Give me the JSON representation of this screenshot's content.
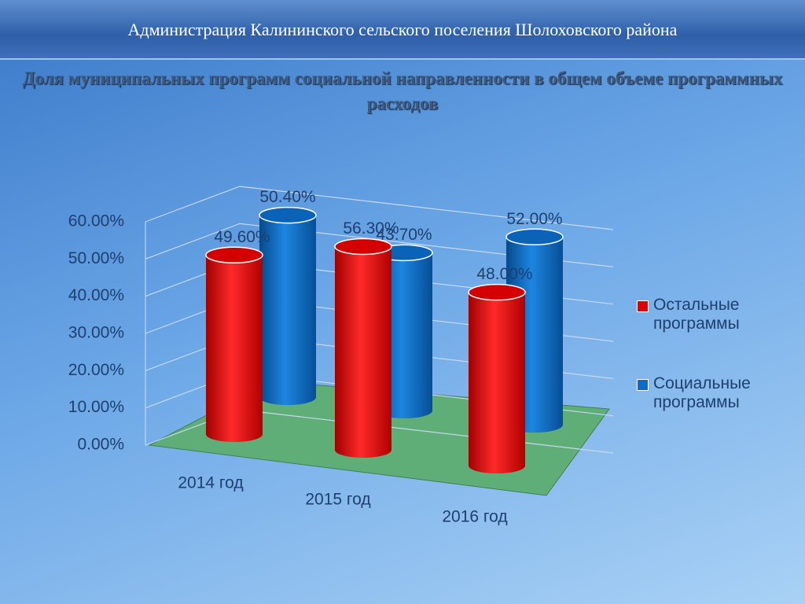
{
  "header": {
    "title": "Администрация Калининского сельского поселения Шолоховского района"
  },
  "chart_data": {
    "type": "bar3d",
    "title": "Доля муниципальных программ социальной направленности в общем объеме программных расходов",
    "categories": [
      "2014 год",
      "2015 год",
      "2016 год"
    ],
    "series": [
      {
        "name": "Остальные программы",
        "color": "#e00000",
        "values": [
          49.6,
          56.3,
          48.0
        ],
        "value_labels": [
          "49.60%",
          "56.30%",
          "48.00%"
        ]
      },
      {
        "name": "Социальные программы",
        "color": "#0a6cc4",
        "values": [
          50.4,
          43.7,
          52.0
        ],
        "value_labels": [
          "50.40%",
          "43.70%",
          "52.00%"
        ]
      }
    ],
    "ylim": [
      0,
      60
    ],
    "yticks": [
      {
        "value": 0,
        "label": "0.00%"
      },
      {
        "value": 10,
        "label": "10.00%"
      },
      {
        "value": 20,
        "label": "20.00%"
      },
      {
        "value": 30,
        "label": "30.00%"
      },
      {
        "value": 40,
        "label": "40.00%"
      },
      {
        "value": 50,
        "label": "50.00%"
      },
      {
        "value": 60,
        "label": "60.00%"
      }
    ],
    "grid": true,
    "legend": "right"
  }
}
